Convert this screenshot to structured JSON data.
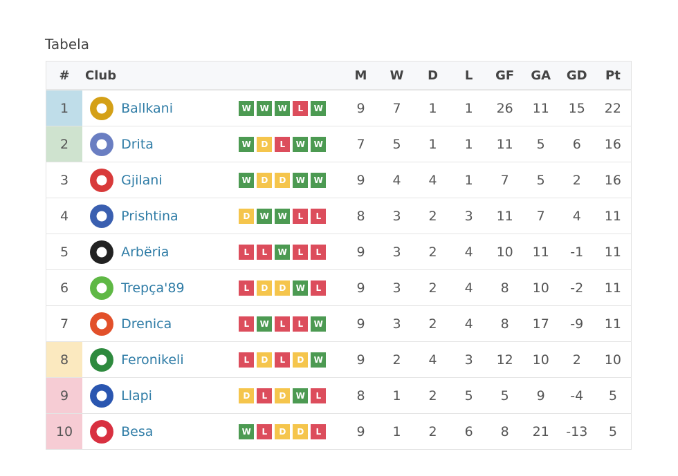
{
  "title": "Tabela",
  "headers": {
    "rank": "#",
    "club": "Club",
    "m": "M",
    "w": "W",
    "d": "D",
    "l": "L",
    "gf": "GF",
    "ga": "GA",
    "gd": "GD",
    "pt": "Pt"
  },
  "colors": {
    "win": "#4c9a52",
    "draw": "#f5c54c",
    "loss": "#dc4d5c",
    "link": "#2f7ca6"
  },
  "rows": [
    {
      "rank": "1",
      "club": "Ballkani",
      "form": [
        "W",
        "W",
        "W",
        "L",
        "W"
      ],
      "m": "9",
      "w": "7",
      "d": "1",
      "l": "1",
      "gf": "26",
      "ga": "11",
      "gd": "15",
      "pt": "22",
      "zone": "#bfdde9",
      "crest": "#d4a017"
    },
    {
      "rank": "2",
      "club": "Drita",
      "form": [
        "W",
        "D",
        "L",
        "W",
        "W"
      ],
      "m": "7",
      "w": "5",
      "d": "1",
      "l": "1",
      "gf": "11",
      "ga": "5",
      "gd": "6",
      "pt": "16",
      "zone": "#cfe3cf",
      "crest": "#6a7ec2"
    },
    {
      "rank": "3",
      "club": "Gjilani",
      "form": [
        "W",
        "D",
        "D",
        "W",
        "W"
      ],
      "m": "9",
      "w": "4",
      "d": "4",
      "l": "1",
      "gf": "7",
      "ga": "5",
      "gd": "2",
      "pt": "16",
      "zone": "",
      "crest": "#d83a3a"
    },
    {
      "rank": "4",
      "club": "Prishtina",
      "form": [
        "D",
        "W",
        "W",
        "L",
        "L"
      ],
      "m": "8",
      "w": "3",
      "d": "2",
      "l": "3",
      "gf": "11",
      "ga": "7",
      "gd": "4",
      "pt": "11",
      "zone": "",
      "crest": "#3a5fb0"
    },
    {
      "rank": "5",
      "club": "Arbëria",
      "form": [
        "L",
        "L",
        "W",
        "L",
        "L"
      ],
      "m": "9",
      "w": "3",
      "d": "2",
      "l": "4",
      "gf": "10",
      "ga": "11",
      "gd": "-1",
      "pt": "11",
      "zone": "",
      "crest": "#222222"
    },
    {
      "rank": "6",
      "club": "Trepça'89",
      "form": [
        "L",
        "D",
        "D",
        "W",
        "L"
      ],
      "m": "9",
      "w": "3",
      "d": "2",
      "l": "4",
      "gf": "8",
      "ga": "10",
      "gd": "-2",
      "pt": "11",
      "zone": "",
      "crest": "#5fb845"
    },
    {
      "rank": "7",
      "club": "Drenica",
      "form": [
        "L",
        "W",
        "L",
        "L",
        "W"
      ],
      "m": "9",
      "w": "3",
      "d": "2",
      "l": "4",
      "gf": "8",
      "ga": "17",
      "gd": "-9",
      "pt": "11",
      "zone": "",
      "crest": "#e2502a"
    },
    {
      "rank": "8",
      "club": "Feronikeli",
      "form": [
        "L",
        "D",
        "L",
        "D",
        "W"
      ],
      "m": "9",
      "w": "2",
      "d": "4",
      "l": "3",
      "gf": "12",
      "ga": "10",
      "gd": "2",
      "pt": "10",
      "zone": "#fbe9bf",
      "crest": "#2e8a3e"
    },
    {
      "rank": "9",
      "club": "Llapi",
      "form": [
        "D",
        "L",
        "D",
        "W",
        "L"
      ],
      "m": "8",
      "w": "1",
      "d": "2",
      "l": "5",
      "gf": "5",
      "ga": "9",
      "gd": "-4",
      "pt": "5",
      "zone": "#f6ccd4",
      "crest": "#2a56b0"
    },
    {
      "rank": "10",
      "club": "Besa",
      "form": [
        "W",
        "L",
        "D",
        "D",
        "L"
      ],
      "m": "9",
      "w": "1",
      "d": "2",
      "l": "6",
      "gf": "8",
      "ga": "21",
      "gd": "-13",
      "pt": "5",
      "zone": "#f6ccd4",
      "crest": "#d83040"
    }
  ]
}
